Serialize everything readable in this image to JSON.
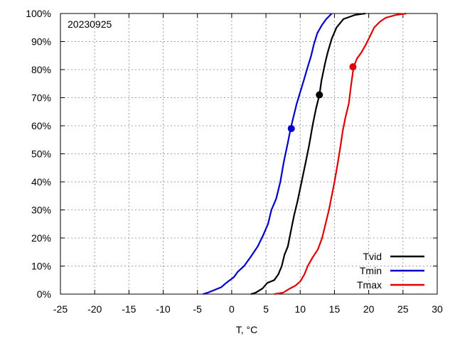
{
  "chart_data": {
    "type": "line",
    "annotation": "20230925",
    "xlabel": "T, °C",
    "ylabel": "",
    "xlim": [
      -25,
      30
    ],
    "ylim": [
      0,
      100
    ],
    "x_ticks": [
      -25,
      -20,
      -15,
      -10,
      -5,
      0,
      5,
      10,
      15,
      20,
      25,
      30
    ],
    "y_ticks": [
      0,
      10,
      20,
      30,
      40,
      50,
      60,
      70,
      80,
      90,
      100
    ],
    "y_tick_format": "percent",
    "grid": true,
    "legend_position": "bottom-right",
    "series": [
      {
        "name": "Tvid",
        "color": "#000000",
        "points": [
          [
            2.8,
            0
          ],
          [
            3.5,
            0.5
          ],
          [
            4.5,
            2
          ],
          [
            5.2,
            4
          ],
          [
            6.2,
            5
          ],
          [
            6.8,
            7
          ],
          [
            7.3,
            10
          ],
          [
            7.7,
            14
          ],
          [
            8.2,
            17
          ],
          [
            8.6,
            22
          ],
          [
            9.1,
            28
          ],
          [
            9.6,
            33
          ],
          [
            10.2,
            40
          ],
          [
            10.8,
            47
          ],
          [
            11.3,
            53
          ],
          [
            11.8,
            60
          ],
          [
            12.3,
            66
          ],
          [
            12.8,
            71
          ],
          [
            13.1,
            76
          ],
          [
            13.6,
            82
          ],
          [
            14.0,
            86
          ],
          [
            14.6,
            91
          ],
          [
            15.3,
            95
          ],
          [
            16.3,
            98
          ],
          [
            18.0,
            99.5
          ],
          [
            19.5,
            100
          ]
        ],
        "marker": {
          "x": 12.8,
          "y": 71
        }
      },
      {
        "name": "Tmin",
        "color": "#0000cc",
        "points": [
          [
            -4.2,
            0
          ],
          [
            -3.5,
            0.5
          ],
          [
            -2.5,
            1.5
          ],
          [
            -1.5,
            2.5
          ],
          [
            -0.8,
            4
          ],
          [
            0.3,
            6
          ],
          [
            0.9,
            8
          ],
          [
            1.8,
            10
          ],
          [
            2.7,
            13
          ],
          [
            3.8,
            17
          ],
          [
            4.6,
            21
          ],
          [
            5.3,
            25
          ],
          [
            5.8,
            30
          ],
          [
            6.5,
            34
          ],
          [
            7.1,
            40
          ],
          [
            7.6,
            47
          ],
          [
            8.2,
            54
          ],
          [
            8.6,
            59
          ],
          [
            9.0,
            63
          ],
          [
            9.5,
            68
          ],
          [
            10.0,
            72
          ],
          [
            10.5,
            76
          ],
          [
            11.1,
            81
          ],
          [
            11.6,
            85
          ],
          [
            12.0,
            89
          ],
          [
            12.5,
            93
          ],
          [
            13.2,
            96
          ],
          [
            13.8,
            98
          ],
          [
            14.6,
            100
          ]
        ],
        "marker": {
          "x": 8.7,
          "y": 59
        }
      },
      {
        "name": "Tmax",
        "color": "#e00000",
        "points": [
          [
            6.2,
            0
          ],
          [
            7.5,
            0.5
          ],
          [
            8.5,
            2
          ],
          [
            9.3,
            3
          ],
          [
            10.0,
            4.5
          ],
          [
            10.6,
            7
          ],
          [
            11.1,
            10
          ],
          [
            11.8,
            13
          ],
          [
            12.6,
            16
          ],
          [
            13.2,
            20
          ],
          [
            13.7,
            25
          ],
          [
            14.2,
            30
          ],
          [
            14.6,
            35
          ],
          [
            15.0,
            40
          ],
          [
            15.5,
            47
          ],
          [
            15.9,
            53
          ],
          [
            16.2,
            58
          ],
          [
            16.6,
            63
          ],
          [
            17.1,
            68
          ],
          [
            17.4,
            74
          ],
          [
            17.8,
            81
          ],
          [
            18.3,
            84
          ],
          [
            18.9,
            86
          ],
          [
            19.6,
            89
          ],
          [
            20.2,
            92
          ],
          [
            20.8,
            95
          ],
          [
            21.6,
            97
          ],
          [
            22.5,
            98.5
          ],
          [
            24.0,
            99.5
          ],
          [
            25.5,
            100
          ]
        ],
        "marker": {
          "x": 17.7,
          "y": 81
        }
      }
    ]
  }
}
